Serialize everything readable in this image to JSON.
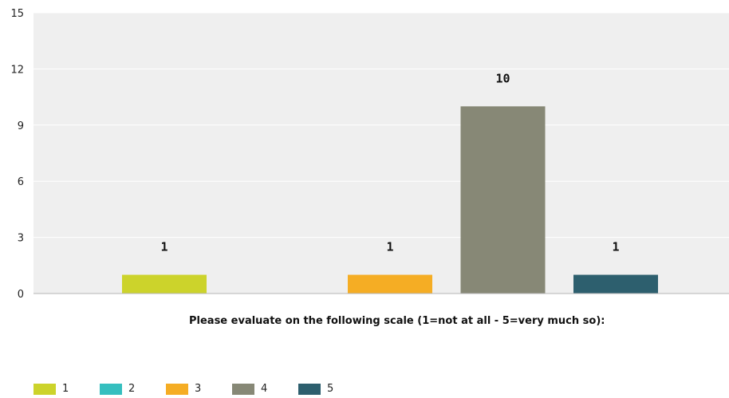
{
  "chart_data": {
    "type": "bar",
    "categories": [
      "1",
      "2",
      "3",
      "4",
      "5"
    ],
    "values": [
      1,
      0,
      1,
      10,
      1
    ],
    "data_labels": [
      "1",
      "",
      "1",
      "10",
      "1"
    ],
    "colors": [
      "#ccd32b",
      "#35bfbf",
      "#f5ad24",
      "#878876",
      "#2d5f6e"
    ],
    "ylim": [
      0,
      15
    ],
    "yticks": [
      0,
      3,
      6,
      9,
      12,
      15
    ],
    "ytick_labels": [
      "0",
      "3",
      "6",
      "9",
      "12",
      "15"
    ],
    "xlabel": "Please evaluate on the following scale (1=not at all - 5=very much so):",
    "ylabel": "",
    "title": "",
    "grid": true,
    "plot_background": "#efefef",
    "legend": {
      "position": "bottom-left",
      "entries": [
        "1",
        "2",
        "3",
        "4",
        "5"
      ]
    }
  }
}
